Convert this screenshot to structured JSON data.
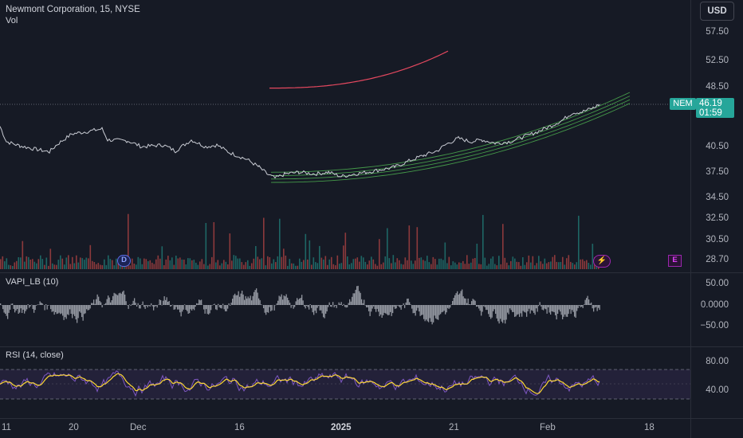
{
  "header": {
    "symbol_title": "Newmont Corporation, 15, NYSE",
    "volume_label": "Vol",
    "currency": "USD"
  },
  "last_price": {
    "ticker": "NEM",
    "price": "46.19",
    "countdown": "01:59"
  },
  "price_axis": [
    "57.50",
    "52.50",
    "48.50",
    "40.50",
    "37.50",
    "34.50",
    "32.50",
    "30.50",
    "28.70"
  ],
  "vapi_pane": {
    "label": "VAPI_LB (10)",
    "axis": [
      "50.00",
      "0.0000",
      "−50.00"
    ]
  },
  "rsi_pane": {
    "label": "RSI (14, close)",
    "axis": [
      "80.00",
      "40.00"
    ]
  },
  "time_axis": [
    "11",
    "20",
    "Dec",
    "16",
    "2025",
    "21",
    "Feb",
    "18"
  ],
  "events": {
    "dividend": "D",
    "earnings": "E",
    "flash": "⚡"
  },
  "colors": {
    "background": "#161a25",
    "up": "#26a69a",
    "down": "#ef5350",
    "channel": "#4caf50",
    "arc": "#e5485f",
    "rsi_line": "#7e57c2",
    "rsi_ma": "#fdd835",
    "vapi_bars": "#b2b5be"
  },
  "chart_data": {
    "type": "line",
    "title": "Newmont Corporation, 15, NYSE",
    "price_path": [
      [
        0,
        43.6
      ],
      [
        8,
        41.8
      ],
      [
        25,
        41.3
      ],
      [
        45,
        40.9
      ],
      [
        62,
        40.6
      ],
      [
        72,
        41.5
      ],
      [
        90,
        42.7
      ],
      [
        110,
        43.0
      ],
      [
        128,
        43.3
      ],
      [
        135,
        42.0
      ],
      [
        160,
        41.9
      ],
      [
        178,
        41.2
      ],
      [
        190,
        41.3
      ],
      [
        205,
        41.4
      ],
      [
        220,
        40.7
      ],
      [
        240,
        42.0
      ],
      [
        258,
        41.2
      ],
      [
        272,
        41.4
      ],
      [
        288,
        40.5
      ],
      [
        310,
        39.7
      ],
      [
        325,
        38.8
      ],
      [
        335,
        38.0
      ],
      [
        345,
        37.5
      ],
      [
        358,
        38.0
      ],
      [
        375,
        38.2
      ],
      [
        395,
        38.0
      ],
      [
        412,
        38.2
      ],
      [
        428,
        37.7
      ],
      [
        445,
        38.0
      ],
      [
        460,
        38.2
      ],
      [
        478,
        38.5
      ],
      [
        495,
        38.8
      ],
      [
        515,
        39.6
      ],
      [
        532,
        40.2
      ],
      [
        548,
        40.7
      ],
      [
        560,
        41.5
      ],
      [
        575,
        42.2
      ],
      [
        590,
        41.8
      ],
      [
        605,
        42.0
      ],
      [
        622,
        41.6
      ],
      [
        640,
        41.8
      ],
      [
        655,
        42.3
      ],
      [
        670,
        42.8
      ],
      [
        690,
        43.6
      ],
      [
        705,
        44.3
      ],
      [
        718,
        45.2
      ],
      [
        730,
        45.3
      ],
      [
        745,
        45.8
      ],
      [
        752,
        46.2
      ]
    ],
    "channel": {
      "x_start": 340,
      "x_end": 790,
      "upper_start": 38.2,
      "upper_end": 47.6,
      "lower_start": 37.0,
      "lower_end": 46.3,
      "bands": 4
    },
    "arc": {
      "start": [
        338,
        48.1
      ],
      "end": [
        565,
        52.6
      ]
    },
    "last": 46.19
  }
}
